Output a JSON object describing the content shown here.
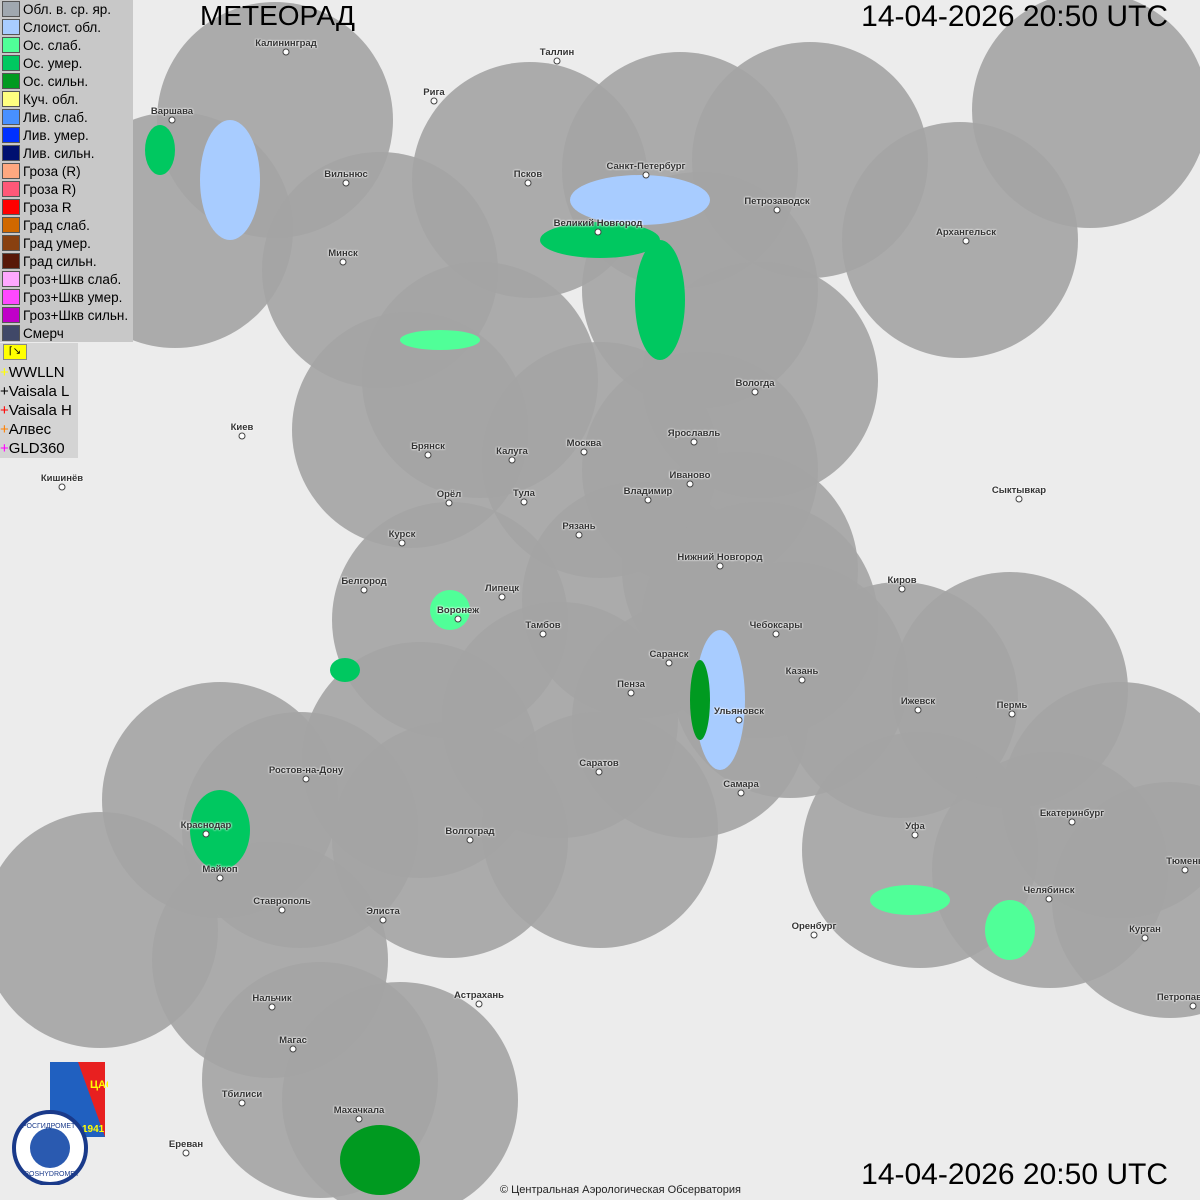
{
  "header": {
    "title": "МЕТЕОРАД",
    "timestamp_top": "14-04-2026  20:50 UTC",
    "timestamp_bottom": "14-04-2026  20:50 UTC"
  },
  "legend": [
    {
      "label": "Обл. в. ср. яр.",
      "color": "#a0a8b0"
    },
    {
      "label": "Слоист. обл.",
      "color": "#a8ccff"
    },
    {
      "label": "Ос. слаб.",
      "color": "#50ff98"
    },
    {
      "label": "Ос. умер.",
      "color": "#00c860"
    },
    {
      "label": "Ос. сильн.",
      "color": "#009a20"
    },
    {
      "label": "Куч. обл.",
      "color": "#ffff80"
    },
    {
      "label": "Лив. слаб.",
      "color": "#4890ff"
    },
    {
      "label": "Лив. умер.",
      "color": "#0030ff"
    },
    {
      "label": "Лив. сильн.",
      "color": "#001070"
    },
    {
      "label": "Гроза (R)",
      "color": "#ffa880"
    },
    {
      "label": "Гроза R)",
      "color": "#ff5878"
    },
    {
      "label": "Гроза R",
      "color": "#ff0000"
    },
    {
      "label": "Град слаб.",
      "color": "#d06800"
    },
    {
      "label": "Град умер.",
      "color": "#884010"
    },
    {
      "label": "Град сильн.",
      "color": "#581808"
    },
    {
      "label": "Гроз+Шкв слаб.",
      "color": "#ffa8ff"
    },
    {
      "label": "Гроз+Шкв умер.",
      "color": "#ff48ff"
    },
    {
      "label": "Гроз+Шкв сильн.",
      "color": "#c000c8"
    },
    {
      "label": "Смерч",
      "color": "#404868"
    }
  ],
  "lightning": [
    {
      "label": "WWLLN",
      "color": "#ffff00"
    },
    {
      "label": "Vaisala L",
      "color": "#000000"
    },
    {
      "label": "Vaisala H",
      "color": "#ff0000"
    },
    {
      "label": "Алвес",
      "color": "#ff8000"
    },
    {
      "label": "GLD360",
      "color": "#ff00ff"
    }
  ],
  "cities": [
    "Калининград",
    "Таллин",
    "Рига",
    "Варшава",
    "Вильнюс",
    "Псков",
    "Санкт-Петербург",
    "Петрозаводск",
    "Архангельск",
    "Великий Новгород",
    "Минск",
    "Вологда",
    "Киев",
    "Брянск",
    "Калуга",
    "Москва",
    "Ярославль",
    "Иваново",
    "Владимир",
    "Тула",
    "Орёл",
    "Рязань",
    "Сыктывкар",
    "Кишинёв",
    "Курск",
    "Нижний Новгород",
    "Белгород",
    "Липецк",
    "Киров",
    "Воронеж",
    "Тамбов",
    "Чебоксары",
    "Саранск",
    "Казань",
    "Пенза",
    "Ижевск",
    "Пермь",
    "Ульяновск",
    "Ростов-на-Дону",
    "Саратов",
    "Самара",
    "Екатеринбург",
    "Краснодар",
    "Волгоград",
    "Уфа",
    "Тюмень",
    "Майкоп",
    "Челябинск",
    "Ставрополь",
    "Элиста",
    "Оренбург",
    "Курган",
    "Нальчик",
    "Астрахань",
    "Петропавловск",
    "Магас",
    "Тбилиси",
    "Махачкала",
    "Ереван"
  ],
  "logos": {
    "rosgidromet": "РОСГИДРОМЕТ",
    "roshydromet": "ROSHYDROMET",
    "cao": "ЦАО",
    "year": "1941"
  },
  "copyright": "© Центральная Аэрологическая Обсерватория"
}
